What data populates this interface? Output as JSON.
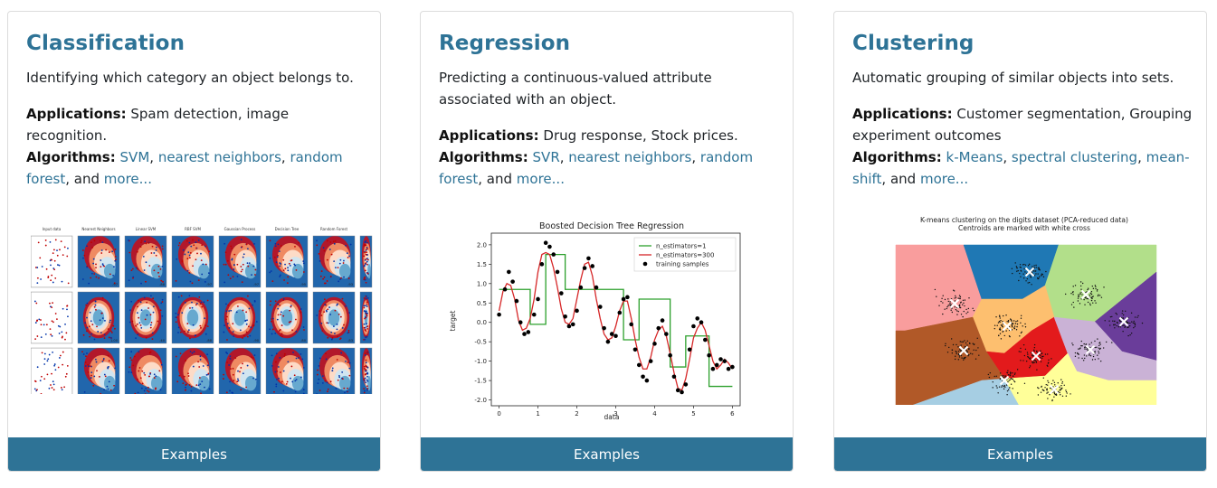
{
  "cards": [
    {
      "title": "Classification",
      "description": "Identifying which category an object belongs to.",
      "applications_label": "Applications:",
      "applications": "Spam detection, image recognition.",
      "algorithms_label": "Algorithms:",
      "algorithms": [
        "SVM",
        "nearest neighbors",
        "random forest"
      ],
      "more_prefix": "and",
      "more": "more...",
      "button": "Examples",
      "figure": {
        "column_titles": [
          "Input data",
          "Nearest Neighbors",
          "Linear SVM",
          "RBF SVM",
          "Gaussian Process",
          "Decision Tree",
          "Random Forest",
          "N"
        ],
        "scores": [
          [
            "",
            ".97",
            ".88",
            ".97",
            ".97",
            ".95",
            ".93",
            ""
          ],
          [
            "",
            "1.00",
            ".40",
            ".88",
            ".90",
            ".80",
            ".83",
            ""
          ],
          [
            "",
            ".93",
            ".95",
            ".95",
            ".93",
            ".95",
            ".93",
            ""
          ]
        ]
      }
    },
    {
      "title": "Regression",
      "description": "Predicting a continuous-valued attribute associated with an object.",
      "applications_label": "Applications:",
      "applications": "Drug response, Stock prices.",
      "algorithms_label": "Algorithms:",
      "algorithms": [
        "SVR",
        "nearest neighbors",
        "random forest"
      ],
      "more_prefix": "and",
      "more": "more...",
      "button": "Examples",
      "chart_data": {
        "type": "line",
        "title": "Boosted Decision Tree Regression",
        "xlabel": "data",
        "ylabel": "target",
        "xlim": [
          -0.2,
          6.2
        ],
        "ylim": [
          -2.15,
          2.3
        ],
        "xticks": [
          0,
          1,
          2,
          3,
          4,
          5,
          6
        ],
        "yticks": [
          2.0,
          1.5,
          1.0,
          0.5,
          0.0,
          -0.5,
          -1.0,
          -1.5,
          -2.0
        ],
        "legend_position": "top-right",
        "series": [
          {
            "name": "n_estimators=1",
            "color": "#2ca02c",
            "step": true,
            "x": [
              0,
              0.8,
              1.2,
              1.7,
              2.6,
              3.2,
              3.6,
              4.4,
              4.8,
              5.4,
              6.0
            ],
            "y": [
              0.85,
              -0.05,
              1.75,
              0.85,
              0.85,
              -0.45,
              0.6,
              -1.15,
              -0.35,
              -1.65,
              -1.15
            ]
          },
          {
            "name": "n_estimators=300",
            "color": "#d62728",
            "x": [
              0,
              0.1,
              0.2,
              0.3,
              0.4,
              0.5,
              0.6,
              0.7,
              0.8,
              0.9,
              1.0,
              1.1,
              1.2,
              1.3,
              1.4,
              1.5,
              1.6,
              1.7,
              1.8,
              1.9,
              2.0,
              2.1,
              2.2,
              2.3,
              2.4,
              2.5,
              2.6,
              2.7,
              2.8,
              2.9,
              3.0,
              3.1,
              3.2,
              3.3,
              3.4,
              3.5,
              3.6,
              3.7,
              3.8,
              3.9,
              4.0,
              4.1,
              4.2,
              4.3,
              4.4,
              4.5,
              4.6,
              4.7,
              4.8,
              4.9,
              5.0,
              5.1,
              5.2,
              5.3,
              5.4,
              5.5,
              5.6,
              5.7,
              5.8,
              5.9,
              6.0
            ],
            "y": [
              0.3,
              0.8,
              1.0,
              0.95,
              0.6,
              0.05,
              -0.2,
              -0.15,
              0.1,
              0.6,
              1.3,
              1.75,
              1.8,
              1.75,
              1.4,
              0.9,
              0.35,
              0.0,
              -0.05,
              0.1,
              0.6,
              1.1,
              1.5,
              1.55,
              1.2,
              0.6,
              0.1,
              -0.3,
              -0.45,
              -0.4,
              -0.1,
              0.3,
              0.55,
              0.55,
              0.1,
              -0.45,
              -0.9,
              -1.2,
              -1.2,
              -0.9,
              -0.45,
              -0.2,
              -0.1,
              -0.35,
              -0.8,
              -1.3,
              -1.7,
              -1.75,
              -1.45,
              -0.95,
              -0.4,
              -0.15,
              0.0,
              -0.2,
              -0.6,
              -1.0,
              -1.2,
              -1.1,
              -0.95,
              -1.05,
              -1.2
            ]
          }
        ],
        "training_samples": {
          "name": "training samples",
          "color": "#000000",
          "x": [
            0.0,
            0.15,
            0.25,
            0.35,
            0.45,
            0.55,
            0.65,
            0.75,
            0.9,
            1.0,
            1.1,
            1.2,
            1.3,
            1.4,
            1.5,
            1.6,
            1.7,
            1.8,
            1.9,
            2.0,
            2.1,
            2.2,
            2.3,
            2.4,
            2.5,
            2.6,
            2.7,
            2.8,
            2.9,
            3.0,
            3.1,
            3.2,
            3.3,
            3.4,
            3.5,
            3.6,
            3.7,
            3.8,
            3.9,
            4.0,
            4.1,
            4.2,
            4.3,
            4.4,
            4.5,
            4.6,
            4.7,
            4.8,
            4.9,
            5.0,
            5.1,
            5.2,
            5.3,
            5.4,
            5.5,
            5.6,
            5.7,
            5.8,
            5.9,
            6.0
          ],
          "y": [
            0.2,
            0.85,
            1.3,
            1.05,
            0.55,
            0.0,
            -0.3,
            -0.25,
            0.2,
            0.6,
            1.5,
            2.05,
            1.95,
            1.75,
            1.3,
            0.75,
            0.15,
            -0.1,
            -0.05,
            0.3,
            0.9,
            1.4,
            1.65,
            1.45,
            0.9,
            0.4,
            -0.15,
            -0.5,
            -0.3,
            -0.35,
            0.25,
            0.6,
            0.65,
            -0.05,
            -0.7,
            -1.1,
            -1.4,
            -1.5,
            -1.0,
            -0.55,
            -0.15,
            0.05,
            -0.3,
            -0.85,
            -1.4,
            -1.75,
            -1.8,
            -1.6,
            -0.7,
            -0.1,
            0.1,
            0.0,
            -0.45,
            -0.85,
            -1.2,
            -1.1,
            -0.95,
            -1.0,
            -1.2,
            -1.15
          ]
        }
      }
    },
    {
      "title": "Clustering",
      "description": "Automatic grouping of similar objects into sets.",
      "applications_label": "Applications:",
      "applications": "Customer segmentation, Grouping experiment outcomes",
      "algorithms_label": "Algorithms:",
      "algorithms": [
        "k-Means",
        "spectral clustering",
        "mean-shift"
      ],
      "more_prefix": "and",
      "more": "more...",
      "button": "Examples",
      "figure": {
        "title_line1": "K-means clustering on the digits dataset (PCA-reduced data)",
        "title_line2": "Centroids are marked with white cross",
        "region_colors": [
          "#f99d9d",
          "#1f78b4",
          "#b2df8a",
          "#6a3d9a",
          "#fdbf6f",
          "#e31a1c",
          "#cab2d6",
          "#b15928",
          "#a6cee3",
          "#ffff99"
        ]
      }
    }
  ]
}
